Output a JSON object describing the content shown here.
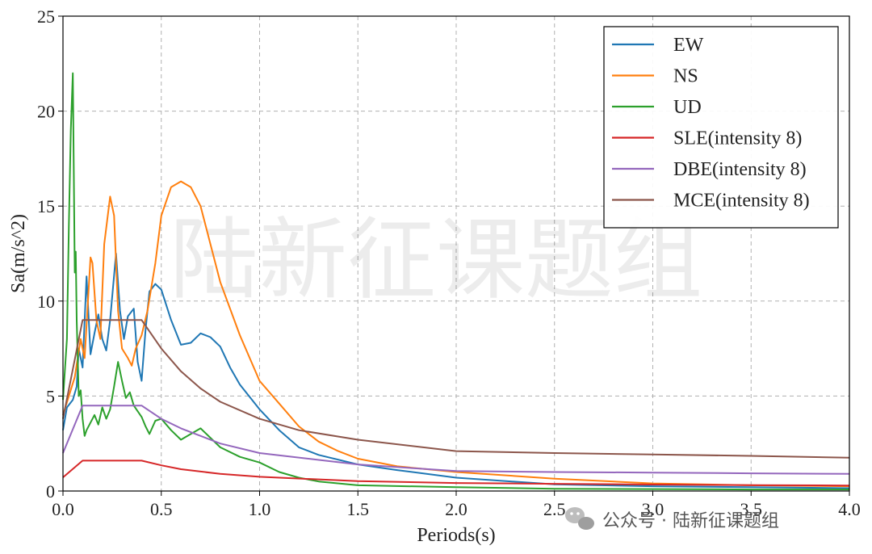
{
  "chart_data": {
    "type": "line",
    "xlabel": "Periods(s)",
    "ylabel": "Sa(m/s^2)",
    "xlim": [
      0,
      4.0
    ],
    "ylim": [
      0,
      25
    ],
    "xticks": [
      "0.0",
      "0.5",
      "1.0",
      "1.5",
      "2.0",
      "2.5",
      "3.0",
      "3.5",
      "4.0"
    ],
    "yticks": [
      "0",
      "5",
      "10",
      "15",
      "20",
      "25"
    ],
    "grid": true,
    "legend_position": "top-right",
    "series": [
      {
        "name": "EW",
        "color": "#1f77b4",
        "points": [
          [
            0,
            3.2
          ],
          [
            0.02,
            4.4
          ],
          [
            0.05,
            4.8
          ],
          [
            0.07,
            5.5
          ],
          [
            0.08,
            7.5
          ],
          [
            0.1,
            6.5
          ],
          [
            0.12,
            11.3
          ],
          [
            0.14,
            7.2
          ],
          [
            0.16,
            8.3
          ],
          [
            0.18,
            9.3
          ],
          [
            0.2,
            8.0
          ],
          [
            0.22,
            7.4
          ],
          [
            0.24,
            9.0
          ],
          [
            0.27,
            12.5
          ],
          [
            0.29,
            9.5
          ],
          [
            0.31,
            8.0
          ],
          [
            0.33,
            9.2
          ],
          [
            0.36,
            9.6
          ],
          [
            0.38,
            6.8
          ],
          [
            0.4,
            5.8
          ],
          [
            0.42,
            8.5
          ],
          [
            0.44,
            10.5
          ],
          [
            0.47,
            10.9
          ],
          [
            0.5,
            10.6
          ],
          [
            0.55,
            9.0
          ],
          [
            0.6,
            7.7
          ],
          [
            0.65,
            7.8
          ],
          [
            0.7,
            8.3
          ],
          [
            0.75,
            8.1
          ],
          [
            0.8,
            7.6
          ],
          [
            0.85,
            6.5
          ],
          [
            0.9,
            5.6
          ],
          [
            1.0,
            4.3
          ],
          [
            1.1,
            3.2
          ],
          [
            1.2,
            2.3
          ],
          [
            1.3,
            1.9
          ],
          [
            1.5,
            1.4
          ],
          [
            1.7,
            1.1
          ],
          [
            2.0,
            0.7
          ],
          [
            2.5,
            0.35
          ],
          [
            3.0,
            0.25
          ],
          [
            3.5,
            0.2
          ],
          [
            4.0,
            0.15
          ]
        ]
      },
      {
        "name": "NS",
        "color": "#ff7f0e",
        "points": [
          [
            0,
            4.0
          ],
          [
            0.03,
            5.0
          ],
          [
            0.06,
            6.0
          ],
          [
            0.09,
            8.0
          ],
          [
            0.11,
            7.0
          ],
          [
            0.14,
            12.3
          ],
          [
            0.15,
            12.0
          ],
          [
            0.17,
            9.0
          ],
          [
            0.19,
            8.0
          ],
          [
            0.21,
            13.0
          ],
          [
            0.24,
            15.5
          ],
          [
            0.26,
            14.5
          ],
          [
            0.28,
            9.5
          ],
          [
            0.3,
            7.5
          ],
          [
            0.33,
            7.0
          ],
          [
            0.35,
            6.6
          ],
          [
            0.37,
            7.5
          ],
          [
            0.4,
            8.2
          ],
          [
            0.43,
            9.5
          ],
          [
            0.47,
            12.0
          ],
          [
            0.5,
            14.5
          ],
          [
            0.55,
            16.0
          ],
          [
            0.6,
            16.3
          ],
          [
            0.65,
            16.0
          ],
          [
            0.7,
            15.0
          ],
          [
            0.75,
            13.0
          ],
          [
            0.8,
            11.0
          ],
          [
            0.9,
            8.2
          ],
          [
            1.0,
            5.8
          ],
          [
            1.1,
            4.6
          ],
          [
            1.2,
            3.4
          ],
          [
            1.3,
            2.6
          ],
          [
            1.4,
            2.1
          ],
          [
            1.5,
            1.7
          ],
          [
            1.7,
            1.3
          ],
          [
            2.0,
            1.0
          ],
          [
            2.5,
            0.65
          ],
          [
            3.0,
            0.4
          ],
          [
            3.5,
            0.3
          ],
          [
            4.0,
            0.25
          ]
        ]
      },
      {
        "name": "UD",
        "color": "#2ca02c",
        "points": [
          [
            0,
            4.8
          ],
          [
            0.02,
            8.0
          ],
          [
            0.03,
            14.0
          ],
          [
            0.04,
            19.0
          ],
          [
            0.05,
            22.0
          ],
          [
            0.06,
            11.5
          ],
          [
            0.065,
            12.6
          ],
          [
            0.07,
            9.0
          ],
          [
            0.08,
            5.0
          ],
          [
            0.09,
            5.3
          ],
          [
            0.1,
            3.8
          ],
          [
            0.11,
            2.9
          ],
          [
            0.12,
            3.2
          ],
          [
            0.14,
            3.6
          ],
          [
            0.16,
            4.0
          ],
          [
            0.18,
            3.5
          ],
          [
            0.2,
            4.4
          ],
          [
            0.22,
            3.8
          ],
          [
            0.24,
            4.3
          ],
          [
            0.26,
            5.5
          ],
          [
            0.28,
            6.8
          ],
          [
            0.3,
            5.8
          ],
          [
            0.32,
            4.9
          ],
          [
            0.34,
            5.2
          ],
          [
            0.36,
            4.5
          ],
          [
            0.38,
            4.2
          ],
          [
            0.4,
            3.9
          ],
          [
            0.42,
            3.4
          ],
          [
            0.44,
            3.0
          ],
          [
            0.47,
            3.7
          ],
          [
            0.5,
            3.8
          ],
          [
            0.55,
            3.2
          ],
          [
            0.6,
            2.7
          ],
          [
            0.65,
            3.0
          ],
          [
            0.7,
            3.3
          ],
          [
            0.75,
            2.8
          ],
          [
            0.8,
            2.3
          ],
          [
            0.9,
            1.8
          ],
          [
            1.0,
            1.5
          ],
          [
            1.1,
            1.0
          ],
          [
            1.2,
            0.7
          ],
          [
            1.3,
            0.5
          ],
          [
            1.5,
            0.3
          ],
          [
            2.0,
            0.2
          ],
          [
            2.5,
            0.12
          ],
          [
            3.0,
            0.1
          ],
          [
            3.5,
            0.08
          ],
          [
            4.0,
            0.08
          ]
        ]
      },
      {
        "name": "SLE(intensity 8)",
        "color": "#d62728",
        "points": [
          [
            0,
            0.72
          ],
          [
            0.1,
            1.6
          ],
          [
            0.4,
            1.6
          ],
          [
            0.5,
            1.35
          ],
          [
            0.6,
            1.15
          ],
          [
            0.8,
            0.9
          ],
          [
            1.0,
            0.75
          ],
          [
            1.5,
            0.52
          ],
          [
            2.0,
            0.42
          ],
          [
            2.5,
            0.38
          ],
          [
            3.0,
            0.34
          ],
          [
            3.5,
            0.31
          ],
          [
            4.0,
            0.29
          ]
        ]
      },
      {
        "name": "DBE(intensity 8)",
        "color": "#9467bd",
        "points": [
          [
            0,
            2.0
          ],
          [
            0.1,
            4.5
          ],
          [
            0.4,
            4.5
          ],
          [
            0.5,
            3.8
          ],
          [
            0.6,
            3.3
          ],
          [
            0.8,
            2.5
          ],
          [
            1.0,
            2.0
          ],
          [
            1.5,
            1.4
          ],
          [
            2.0,
            1.05
          ],
          [
            2.5,
            1.0
          ],
          [
            3.0,
            0.97
          ],
          [
            3.5,
            0.93
          ],
          [
            4.0,
            0.9
          ]
        ]
      },
      {
        "name": "MCE(intensity 8)",
        "color": "#8c564b",
        "points": [
          [
            0,
            3.8
          ],
          [
            0.1,
            9.0
          ],
          [
            0.4,
            9.0
          ],
          [
            0.5,
            7.5
          ],
          [
            0.6,
            6.3
          ],
          [
            0.7,
            5.4
          ],
          [
            0.8,
            4.7
          ],
          [
            1.0,
            3.8
          ],
          [
            1.2,
            3.2
          ],
          [
            1.5,
            2.7
          ],
          [
            2.0,
            2.1
          ],
          [
            2.5,
            2.0
          ],
          [
            3.0,
            1.92
          ],
          [
            3.5,
            1.85
          ],
          [
            4.0,
            1.75
          ]
        ]
      }
    ]
  },
  "watermark": {
    "text": "陆新征课题组"
  },
  "brand": {
    "text": "公众号 · 陆新征课题组"
  }
}
